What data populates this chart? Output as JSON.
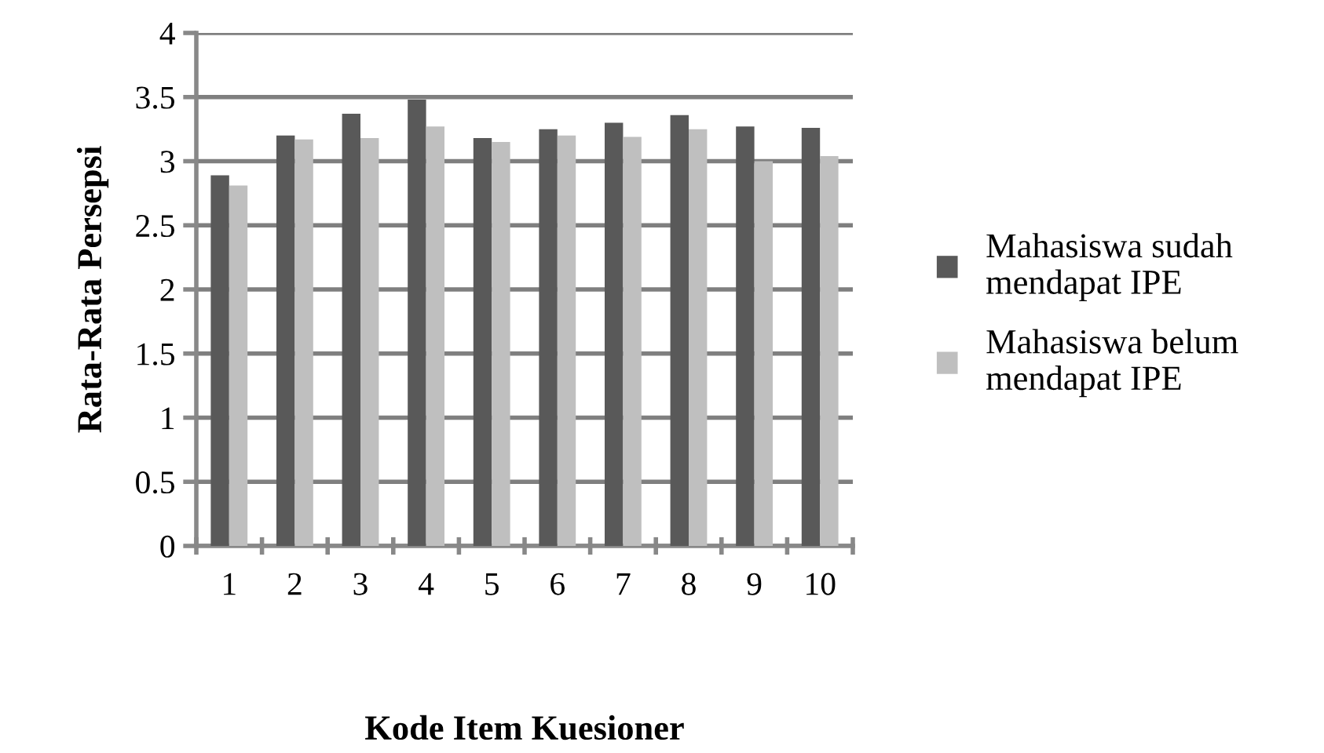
{
  "chart_data": {
    "type": "bar",
    "xlabel": "Kode Item Kuesioner",
    "ylabel": "Rata-Rata Persepsi",
    "categories": [
      "1",
      "2",
      "3",
      "4",
      "5",
      "6",
      "7",
      "8",
      "9",
      "10"
    ],
    "series": [
      {
        "name": "Mahasiswa sudah mendapat IPE",
        "color": "#595959",
        "values": [
          2.89,
          3.2,
          3.37,
          3.48,
          3.18,
          3.25,
          3.3,
          3.36,
          3.27,
          3.26
        ]
      },
      {
        "name": "Mahasiswa belum mendapat IPE",
        "color": "#bfbfbf",
        "values": [
          2.81,
          3.17,
          3.18,
          3.27,
          3.15,
          3.2,
          3.19,
          3.25,
          3.0,
          3.04
        ]
      }
    ],
    "ylim": [
      0,
      4
    ],
    "yticks": [
      0,
      0.5,
      1,
      1.5,
      2,
      2.5,
      3,
      3.5,
      4
    ],
    "grid": "y",
    "legend": "right"
  }
}
